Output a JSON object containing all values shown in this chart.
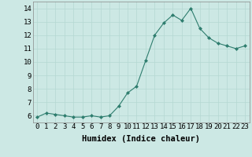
{
  "x": [
    0,
    1,
    2,
    3,
    4,
    5,
    6,
    7,
    8,
    9,
    10,
    11,
    12,
    13,
    14,
    15,
    16,
    17,
    18,
    19,
    20,
    21,
    22,
    23
  ],
  "y": [
    5.9,
    6.2,
    6.1,
    6.0,
    5.9,
    5.9,
    6.0,
    5.9,
    6.0,
    6.7,
    7.7,
    8.2,
    10.1,
    12.0,
    12.9,
    13.5,
    13.1,
    14.0,
    12.5,
    11.8,
    11.4,
    11.2,
    11.0,
    11.2
  ],
  "xlabel": "Humidex (Indice chaleur)",
  "ylim": [
    5.5,
    14.5
  ],
  "xlim": [
    -0.5,
    23.5
  ],
  "yticks": [
    6,
    7,
    8,
    9,
    10,
    11,
    12,
    13,
    14
  ],
  "xticks": [
    0,
    1,
    2,
    3,
    4,
    5,
    6,
    7,
    8,
    9,
    10,
    11,
    12,
    13,
    14,
    15,
    16,
    17,
    18,
    19,
    20,
    21,
    22,
    23
  ],
  "line_color": "#2e7d6e",
  "marker_color": "#2e7d6e",
  "bg_color": "#cce8e4",
  "grid_color": "#b5d8d2",
  "text_color": "#000000",
  "xlabel_fontsize": 7.5,
  "tick_fontsize": 6.5
}
